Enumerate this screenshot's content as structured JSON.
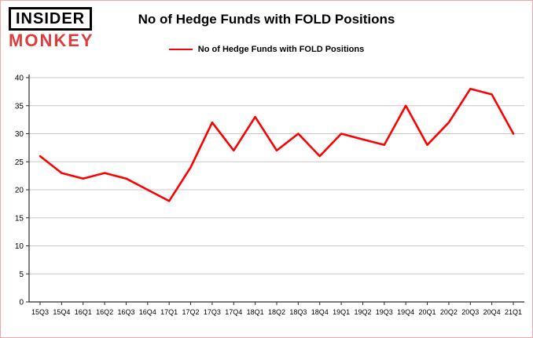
{
  "header": {
    "logo_line1": "INSIDER",
    "logo_line2": "MONKEY",
    "title": "No of Hedge Funds with FOLD Positions"
  },
  "legend": {
    "label": "No of Hedge Funds with FOLD Positions",
    "color": "#ff0000"
  },
  "chart_data": {
    "type": "line",
    "title": "No of Hedge Funds with FOLD Positions",
    "categories": [
      "15Q3",
      "15Q4",
      "16Q1",
      "16Q2",
      "16Q3",
      "16Q4",
      "17Q1",
      "17Q2",
      "17Q3",
      "17Q4",
      "18Q1",
      "18Q2",
      "18Q3",
      "18Q4",
      "19Q1",
      "19Q2",
      "19Q3",
      "19Q4",
      "20Q1",
      "20Q2",
      "20Q3",
      "20Q4",
      "21Q1"
    ],
    "series": [
      {
        "name": "No of Hedge Funds with FOLD Positions",
        "color": "#ff0000",
        "values": [
          26,
          23,
          22,
          23,
          22,
          20,
          18,
          24,
          32,
          27,
          33,
          27,
          30,
          26,
          30,
          29,
          28,
          35,
          28,
          32,
          38,
          37,
          30
        ]
      }
    ],
    "xlabel": "",
    "ylabel": "",
    "ylim": [
      0,
      40
    ],
    "ytick_interval": 5,
    "grid": true,
    "grid_color": "#c8c8c8",
    "legend_position": "top"
  }
}
